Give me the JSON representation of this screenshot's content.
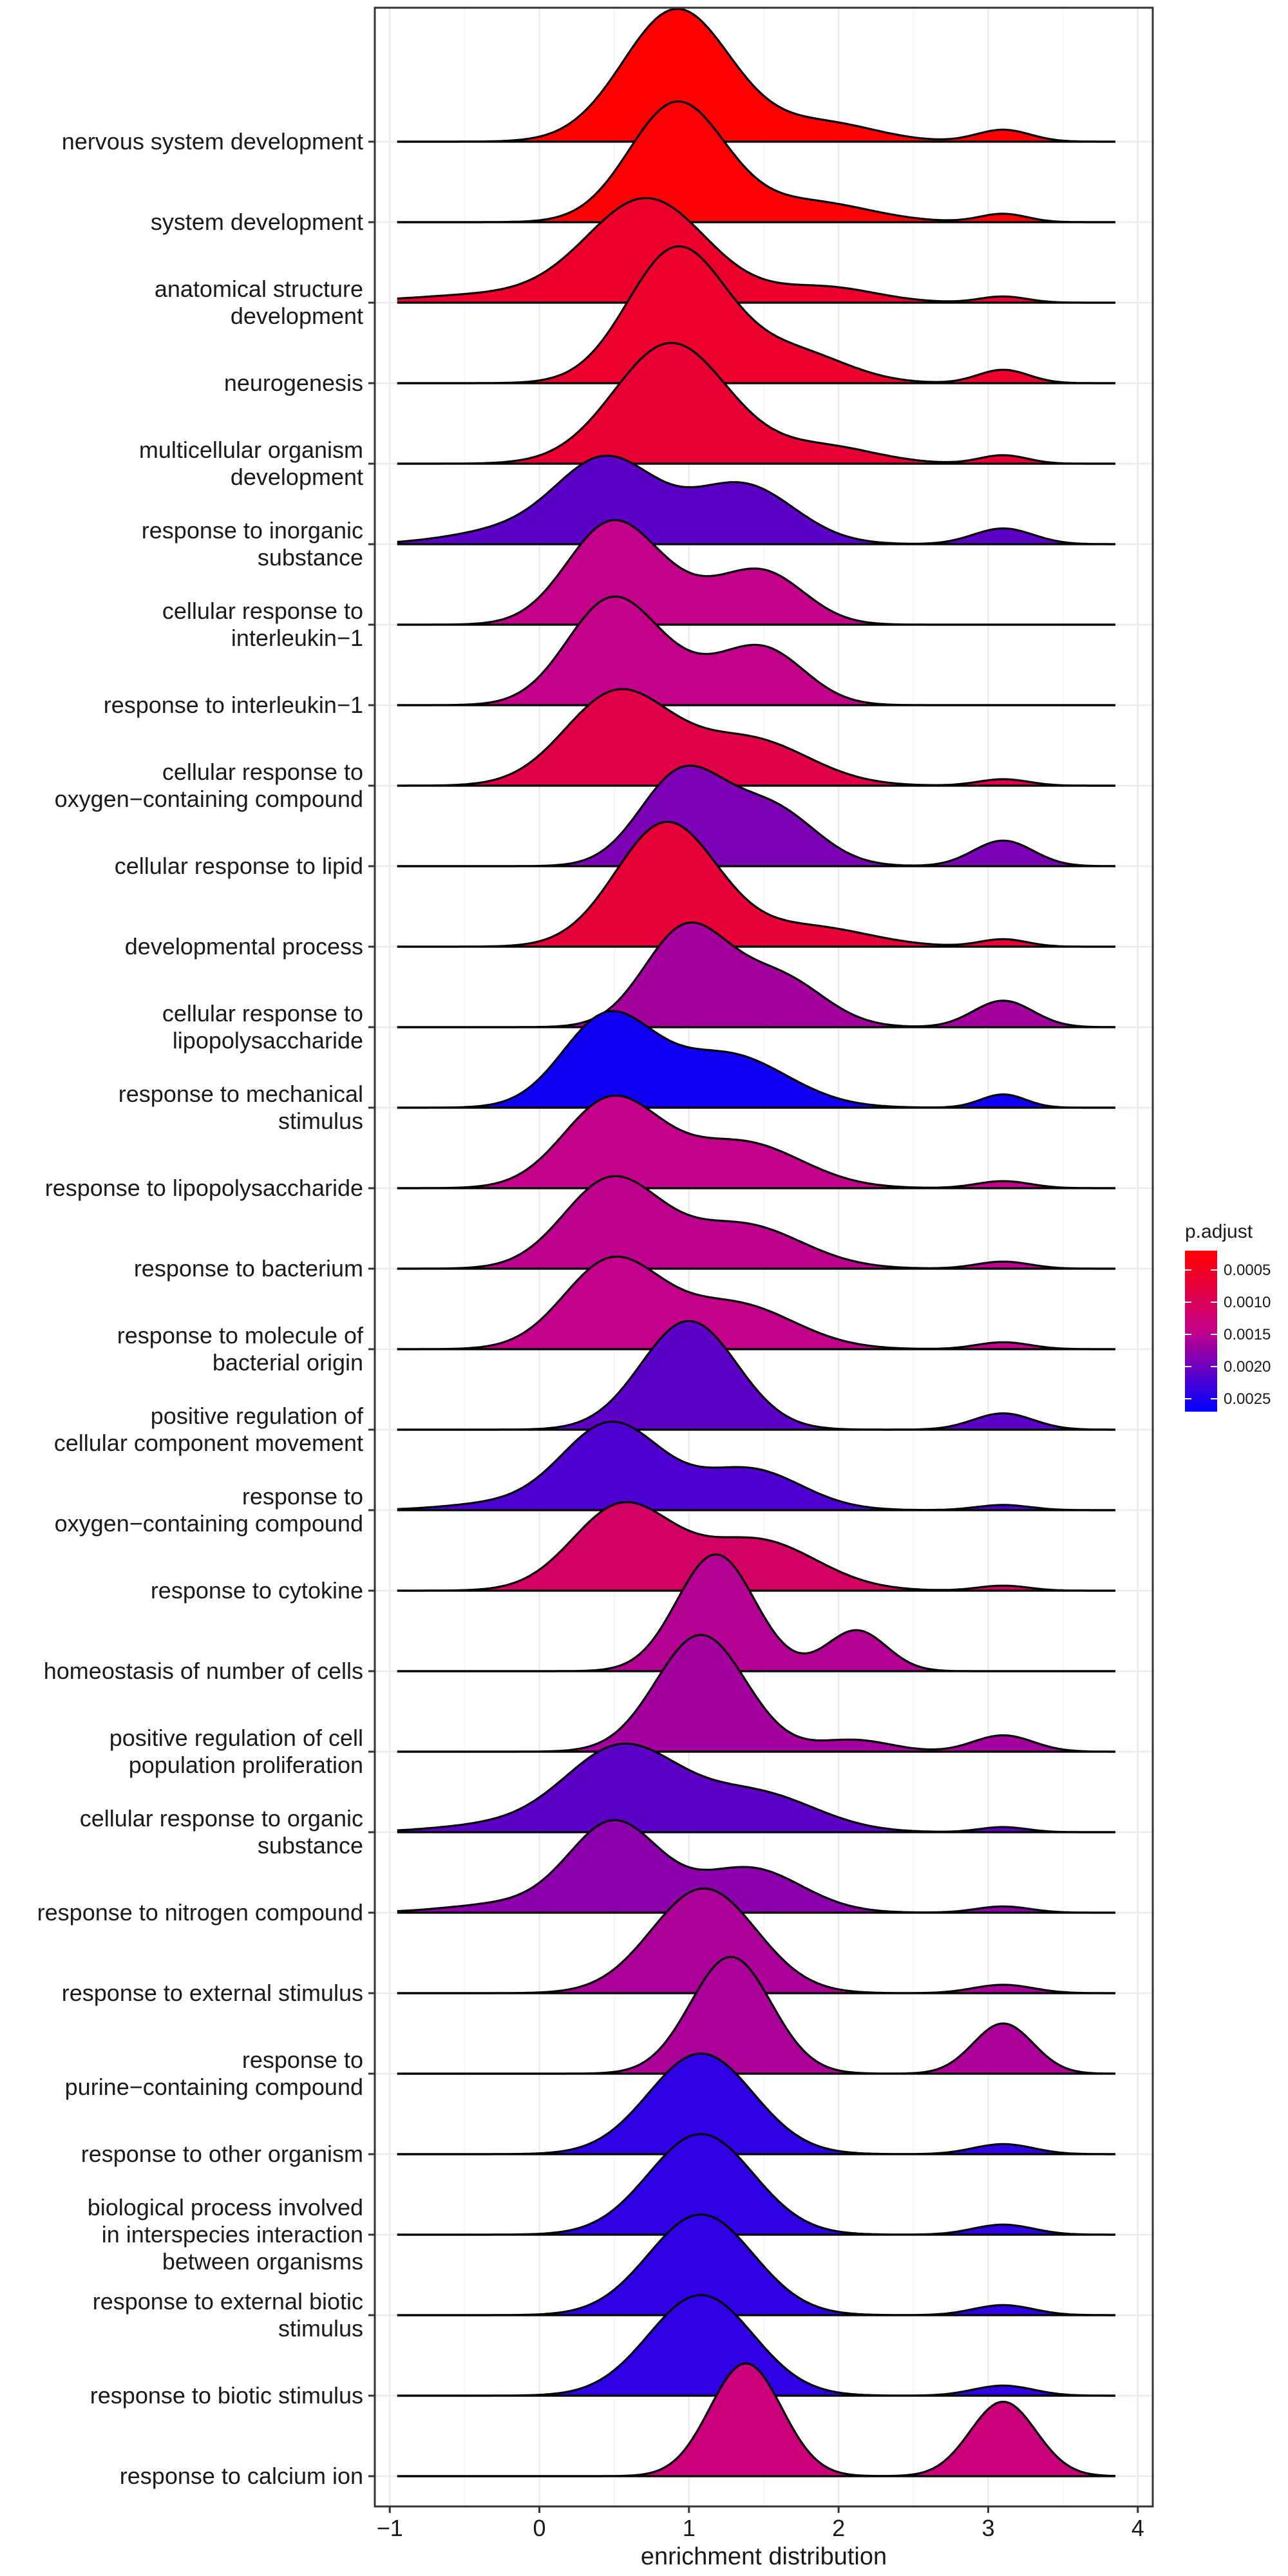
{
  "chart_data": {
    "type": "ridgeline",
    "xlabel": "enrichment distribution",
    "xlim": [
      -1.1,
      4.1
    ],
    "x_ticks": [
      -1,
      0,
      1,
      2,
      3,
      4
    ],
    "x_tick_labels": [
      "−1",
      "0",
      "1",
      "2",
      "3",
      "4"
    ],
    "grid": true,
    "legend": {
      "title": "p.adjust",
      "placement": "right",
      "ticks": [
        0.0005,
        0.001,
        0.0015,
        0.002,
        0.0025
      ],
      "tick_labels": [
        "0.0005",
        "0.0010",
        "0.0015",
        "0.0020",
        "0.0025"
      ],
      "range": [
        0.0002,
        0.0027
      ],
      "low_color": "#ff0000",
      "high_color": "#0000ff"
    },
    "range_x": [
      -0.95,
      3.85
    ],
    "rows": [
      {
        "label": "nervous system development",
        "p_adjust": 0.00022,
        "height": 1.65,
        "peaks": [
          {
            "mean": 0.92,
            "sd": 0.36,
            "weight": 1.0
          },
          {
            "mean": 1.9,
            "sd": 0.35,
            "weight": 0.14
          },
          {
            "mean": 3.1,
            "sd": 0.18,
            "weight": 0.09
          }
        ]
      },
      {
        "label": "system development",
        "p_adjust": 0.00024,
        "height": 1.5,
        "peaks": [
          {
            "mean": 0.92,
            "sd": 0.32,
            "weight": 1.0
          },
          {
            "mean": 1.8,
            "sd": 0.4,
            "weight": 0.17
          },
          {
            "mean": 3.1,
            "sd": 0.16,
            "weight": 0.07
          }
        ]
      },
      {
        "label": "anatomical structure development",
        "p_adjust": 0.0006,
        "height": 1.3,
        "peaks": [
          {
            "mean": 0.72,
            "sd": 0.4,
            "weight": 1.0
          },
          {
            "mean": -0.3,
            "sd": 0.55,
            "weight": 0.08
          },
          {
            "mean": 1.9,
            "sd": 0.35,
            "weight": 0.15
          },
          {
            "mean": 3.1,
            "sd": 0.16,
            "weight": 0.06
          }
        ]
      },
      {
        "label": "neurogenesis",
        "p_adjust": 0.00062,
        "height": 1.7,
        "peaks": [
          {
            "mean": 0.92,
            "sd": 0.33,
            "weight": 1.0
          },
          {
            "mean": 1.7,
            "sd": 0.35,
            "weight": 0.23
          },
          {
            "mean": 3.1,
            "sd": 0.17,
            "weight": 0.1
          }
        ]
      },
      {
        "label": "multicellular organism development",
        "p_adjust": 0.00068,
        "height": 1.5,
        "peaks": [
          {
            "mean": 0.88,
            "sd": 0.38,
            "weight": 1.0
          },
          {
            "mean": 1.9,
            "sd": 0.35,
            "weight": 0.14
          },
          {
            "mean": 3.1,
            "sd": 0.16,
            "weight": 0.07
          }
        ]
      },
      {
        "label": "response to inorganic substance",
        "p_adjust": 0.0021,
        "height": 1.1,
        "peaks": [
          {
            "mean": 0.45,
            "sd": 0.33,
            "weight": 1.0
          },
          {
            "mean": 1.35,
            "sd": 0.35,
            "weight": 0.72
          },
          {
            "mean": -0.2,
            "sd": 0.4,
            "weight": 0.16
          },
          {
            "mean": 3.1,
            "sd": 0.2,
            "weight": 0.19
          }
        ]
      },
      {
        "label": "cellular response to interleukin−1",
        "p_adjust": 0.00145,
        "height": 1.3,
        "peaks": [
          {
            "mean": 0.48,
            "sd": 0.3,
            "weight": 1.0
          },
          {
            "mean": 1.5,
            "sd": 0.28,
            "weight": 0.5
          },
          {
            "mean": 1.0,
            "sd": 0.3,
            "weight": 0.2
          }
        ]
      },
      {
        "label": "response to interleukin−1",
        "p_adjust": 0.00145,
        "height": 1.35,
        "peaks": [
          {
            "mean": 0.48,
            "sd": 0.3,
            "weight": 1.0
          },
          {
            "mean": 1.5,
            "sd": 0.28,
            "weight": 0.52
          },
          {
            "mean": 1.0,
            "sd": 0.3,
            "weight": 0.2
          }
        ]
      },
      {
        "label": "cellular response to oxygen−containing compound",
        "p_adjust": 0.00085,
        "height": 1.2,
        "peaks": [
          {
            "mean": 0.52,
            "sd": 0.35,
            "weight": 1.0
          },
          {
            "mean": 1.4,
            "sd": 0.4,
            "weight": 0.5
          },
          {
            "mean": 3.1,
            "sd": 0.17,
            "weight": 0.07
          }
        ]
      },
      {
        "label": "cellular response to lipid",
        "p_adjust": 0.0019,
        "height": 1.25,
        "peaks": [
          {
            "mean": 0.95,
            "sd": 0.28,
            "weight": 1.0
          },
          {
            "mean": 1.55,
            "sd": 0.3,
            "weight": 0.62
          },
          {
            "mean": 3.1,
            "sd": 0.2,
            "weight": 0.28
          }
        ]
      },
      {
        "label": "developmental process",
        "p_adjust": 0.0007,
        "height": 1.55,
        "peaks": [
          {
            "mean": 0.85,
            "sd": 0.34,
            "weight": 1.0
          },
          {
            "mean": 1.8,
            "sd": 0.4,
            "weight": 0.16
          },
          {
            "mean": 3.1,
            "sd": 0.16,
            "weight": 0.06
          }
        ]
      },
      {
        "label": "cellular response to lipopolysaccharide",
        "p_adjust": 0.00165,
        "height": 1.3,
        "peaks": [
          {
            "mean": 0.98,
            "sd": 0.28,
            "weight": 1.0
          },
          {
            "mean": 1.6,
            "sd": 0.3,
            "weight": 0.5
          },
          {
            "mean": 3.1,
            "sd": 0.2,
            "weight": 0.27
          }
        ]
      },
      {
        "label": "response to mechanical stimulus",
        "p_adjust": 0.0026,
        "height": 1.2,
        "peaks": [
          {
            "mean": 0.45,
            "sd": 0.3,
            "weight": 1.0
          },
          {
            "mean": 1.25,
            "sd": 0.4,
            "weight": 0.6
          },
          {
            "mean": 3.1,
            "sd": 0.15,
            "weight": 0.15
          }
        ]
      },
      {
        "label": "response to lipopolysaccharide",
        "p_adjust": 0.00145,
        "height": 1.15,
        "peaks": [
          {
            "mean": 0.48,
            "sd": 0.32,
            "weight": 1.0
          },
          {
            "mean": 1.35,
            "sd": 0.4,
            "weight": 0.52
          },
          {
            "mean": 3.1,
            "sd": 0.18,
            "weight": 0.08
          }
        ]
      },
      {
        "label": "response to bacterium",
        "p_adjust": 0.00148,
        "height": 1.15,
        "peaks": [
          {
            "mean": 0.48,
            "sd": 0.32,
            "weight": 1.0
          },
          {
            "mean": 1.35,
            "sd": 0.4,
            "weight": 0.5
          },
          {
            "mean": 3.1,
            "sd": 0.18,
            "weight": 0.08
          }
        ]
      },
      {
        "label": "response to molecule of bacterial origin",
        "p_adjust": 0.00145,
        "height": 1.15,
        "peaks": [
          {
            "mean": 0.48,
            "sd": 0.32,
            "weight": 1.0
          },
          {
            "mean": 1.3,
            "sd": 0.4,
            "weight": 0.52
          },
          {
            "mean": 3.1,
            "sd": 0.18,
            "weight": 0.08
          }
        ]
      },
      {
        "label": "positive regulation of cellular component movement",
        "p_adjust": 0.0021,
        "height": 1.35,
        "peaks": [
          {
            "mean": 1.0,
            "sd": 0.32,
            "weight": 1.0
          },
          {
            "mean": 3.1,
            "sd": 0.2,
            "weight": 0.15
          }
        ]
      },
      {
        "label": "response to oxygen−containing compound",
        "p_adjust": 0.0022,
        "height": 1.1,
        "peaks": [
          {
            "mean": 0.48,
            "sd": 0.33,
            "weight": 1.0
          },
          {
            "mean": 1.4,
            "sd": 0.35,
            "weight": 0.47
          },
          {
            "mean": -0.3,
            "sd": 0.35,
            "weight": 0.07
          },
          {
            "mean": 3.1,
            "sd": 0.18,
            "weight": 0.06
          }
        ]
      },
      {
        "label": "response to cytokine",
        "p_adjust": 0.0011,
        "height": 1.1,
        "peaks": [
          {
            "mean": 0.55,
            "sd": 0.33,
            "weight": 1.0
          },
          {
            "mean": 1.45,
            "sd": 0.4,
            "weight": 0.6
          },
          {
            "mean": 3.1,
            "sd": 0.17,
            "weight": 0.06
          }
        ]
      },
      {
        "label": "homeostasis of number of cells",
        "p_adjust": 0.00155,
        "height": 1.45,
        "peaks": [
          {
            "mean": 1.18,
            "sd": 0.26,
            "weight": 1.0
          },
          {
            "mean": 2.12,
            "sd": 0.2,
            "weight": 0.35
          }
        ]
      },
      {
        "label": "positive regulation of cell population proliferation",
        "p_adjust": 0.00165,
        "height": 1.45,
        "peaks": [
          {
            "mean": 1.08,
            "sd": 0.3,
            "weight": 1.0
          },
          {
            "mean": 2.1,
            "sd": 0.25,
            "weight": 0.1
          },
          {
            "mean": 3.1,
            "sd": 0.2,
            "weight": 0.14
          }
        ]
      },
      {
        "label": "cellular response to organic substance",
        "p_adjust": 0.0021,
        "height": 1.1,
        "peaks": [
          {
            "mean": 0.55,
            "sd": 0.38,
            "weight": 1.0
          },
          {
            "mean": 1.45,
            "sd": 0.4,
            "weight": 0.45
          },
          {
            "mean": -0.3,
            "sd": 0.4,
            "weight": 0.08
          },
          {
            "mean": 3.1,
            "sd": 0.16,
            "weight": 0.06
          }
        ]
      },
      {
        "label": "response to nitrogen compound",
        "p_adjust": 0.0018,
        "height": 1.15,
        "peaks": [
          {
            "mean": 0.5,
            "sd": 0.3,
            "weight": 1.0
          },
          {
            "mean": 1.4,
            "sd": 0.35,
            "weight": 0.5
          },
          {
            "mean": -0.2,
            "sd": 0.4,
            "weight": 0.1
          },
          {
            "mean": 3.1,
            "sd": 0.18,
            "weight": 0.07
          }
        ]
      },
      {
        "label": "response to external stimulus",
        "p_adjust": 0.0016,
        "height": 1.3,
        "peaks": [
          {
            "mean": 1.1,
            "sd": 0.35,
            "weight": 1.0
          },
          {
            "mean": 3.1,
            "sd": 0.2,
            "weight": 0.08
          }
        ]
      },
      {
        "label": "response to purine−containing compound",
        "p_adjust": 0.0016,
        "height": 1.45,
        "peaks": [
          {
            "mean": 1.28,
            "sd": 0.27,
            "weight": 1.0
          },
          {
            "mean": 3.1,
            "sd": 0.2,
            "weight": 0.43
          }
        ]
      },
      {
        "label": "response to other organism",
        "p_adjust": 0.0024,
        "height": 1.25,
        "peaks": [
          {
            "mean": 1.08,
            "sd": 0.35,
            "weight": 1.0
          },
          {
            "mean": 3.1,
            "sd": 0.2,
            "weight": 0.1
          }
        ]
      },
      {
        "label": "biological process involved in interspecies interaction between organisms",
        "p_adjust": 0.0024,
        "height": 1.25,
        "peaks": [
          {
            "mean": 1.08,
            "sd": 0.35,
            "weight": 1.0
          },
          {
            "mean": 3.1,
            "sd": 0.2,
            "weight": 0.1
          }
        ]
      },
      {
        "label": "response to external biotic stimulus",
        "p_adjust": 0.0024,
        "height": 1.25,
        "peaks": [
          {
            "mean": 1.08,
            "sd": 0.35,
            "weight": 1.0
          },
          {
            "mean": 3.1,
            "sd": 0.2,
            "weight": 0.1
          }
        ]
      },
      {
        "label": "response to biotic stimulus",
        "p_adjust": 0.0024,
        "height": 1.25,
        "peaks": [
          {
            "mean": 1.08,
            "sd": 0.35,
            "weight": 1.0
          },
          {
            "mean": 3.1,
            "sd": 0.2,
            "weight": 0.1
          }
        ]
      },
      {
        "label": "response to calcium ion",
        "p_adjust": 0.0013,
        "height": 1.4,
        "peaks": [
          {
            "mean": 1.38,
            "sd": 0.24,
            "weight": 1.0
          },
          {
            "mean": 3.1,
            "sd": 0.22,
            "weight": 0.66
          }
        ]
      }
    ]
  }
}
